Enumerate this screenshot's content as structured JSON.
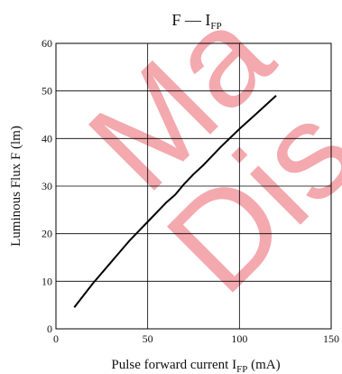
{
  "chart_data": {
    "type": "line",
    "title": {
      "main": "F — I",
      "sub": "FP"
    },
    "xlabel": {
      "main": "Pulse forward current  I",
      "sub": "FP",
      "suffix": "  (mA)"
    },
    "ylabel": "Luminous Flux  F  (lm)",
    "xlim": [
      0,
      150
    ],
    "ylim": [
      0,
      60
    ],
    "xticks": [
      "0",
      "50",
      "100",
      "150"
    ],
    "yticks": [
      "0",
      "10",
      "20",
      "30",
      "40",
      "50",
      "60"
    ],
    "grid": true,
    "series": [
      {
        "x": [
          10,
          20,
          30,
          40,
          50,
          60,
          65,
          70,
          75,
          80,
          90,
          100,
          110,
          120
        ],
        "y": [
          4.5,
          9.5,
          14,
          18.5,
          22.5,
          26.5,
          28.2,
          30.5,
          32.5,
          34.3,
          38.3,
          42,
          45.5,
          49
        ]
      }
    ],
    "line_color": "#000000",
    "watermark": {
      "line1": "Ma",
      "line2": "Dis",
      "color": "#f3a9ae"
    }
  }
}
